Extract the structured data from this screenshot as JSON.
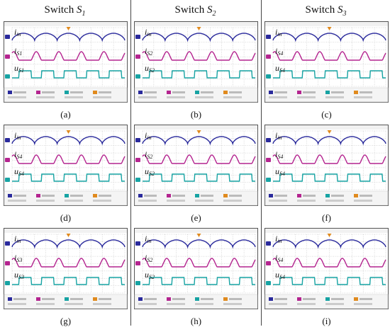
{
  "header": {
    "columns": [
      {
        "prefix": "Switch ",
        "sym": "S",
        "sub": "1"
      },
      {
        "prefix": "Switch ",
        "sym": "S",
        "sub": "2"
      },
      {
        "prefix": "Switch ",
        "sym": "S",
        "sub": "3"
      }
    ]
  },
  "panels": [
    {
      "caption": "(a)",
      "current_label": "i",
      "current_sub": "S1",
      "voltage_label": "u",
      "voltage_sub": "S1",
      "in_label": "i",
      "in_sub": "in"
    },
    {
      "caption": "(b)",
      "current_label": "i",
      "current_sub": "S2",
      "voltage_label": "u",
      "voltage_sub": "S2",
      "in_label": "i",
      "in_sub": "in"
    },
    {
      "caption": "(c)",
      "current_label": "i",
      "current_sub": "S4",
      "voltage_label": "u",
      "voltage_sub": "S4",
      "in_label": "i",
      "in_sub": "in"
    },
    {
      "caption": "(d)",
      "current_label": "i",
      "current_sub": "S4",
      "voltage_label": "u",
      "voltage_sub": "S4",
      "in_label": "i",
      "in_sub": "in"
    },
    {
      "caption": "(e)",
      "current_label": "i",
      "current_sub": "S2",
      "voltage_label": "u",
      "voltage_sub": "S2",
      "in_label": "i",
      "in_sub": "in"
    },
    {
      "caption": "(f)",
      "current_label": "i",
      "current_sub": "S4",
      "voltage_label": "u",
      "voltage_sub": "S4",
      "in_label": "i",
      "in_sub": "in"
    },
    {
      "caption": "(g)",
      "current_label": "i",
      "current_sub": "S3",
      "voltage_label": "u",
      "voltage_sub": "S3",
      "in_label": "i",
      "in_sub": "in"
    },
    {
      "caption": "(h)",
      "current_label": "i",
      "current_sub": "S2",
      "voltage_label": "u",
      "voltage_sub": "S2",
      "in_label": "i",
      "in_sub": "in"
    },
    {
      "caption": "(i)",
      "current_label": "i",
      "current_sub": "S4",
      "voltage_label": "u",
      "voltage_sub": "S4",
      "in_label": "i",
      "in_sub": "in"
    }
  ],
  "colors": {
    "input_current": "#2a2a9c",
    "switch_current": "#b4248f",
    "switch_voltage": "#17a3a3",
    "trigger": "#e08a1e",
    "grid": "#9a9a9a"
  },
  "scope_text": {
    "ch_labels": [
      "1",
      "2",
      "3"
    ]
  }
}
